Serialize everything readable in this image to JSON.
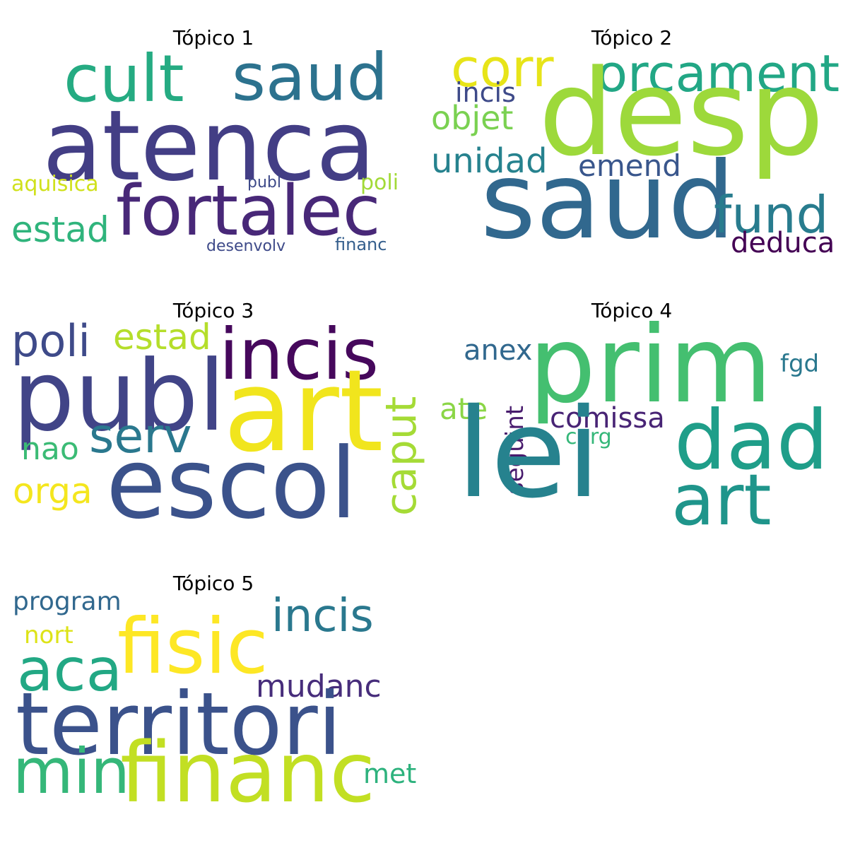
{
  "topics": [
    {
      "title": "Tópico 1",
      "words": [
        {
          "text": "cult",
          "color": "#25ab82"
        },
        {
          "text": "saud",
          "color": "#2c728e"
        },
        {
          "text": "atenca",
          "color": "#433e85"
        },
        {
          "text": "fortalec",
          "color": "#482878"
        },
        {
          "text": "estad",
          "color": "#2fb47c"
        },
        {
          "text": "aquisica",
          "color": "#d0e11c"
        },
        {
          "text": "publ",
          "color": "#3e4a89"
        },
        {
          "text": "poli",
          "color": "#a2da37"
        },
        {
          "text": "desenvolv",
          "color": "#3e4a89"
        },
        {
          "text": "financ",
          "color": "#355f8d"
        }
      ]
    },
    {
      "title": "Tópico 2",
      "words": [
        {
          "text": "corr",
          "color": "#e7e419"
        },
        {
          "text": "orcament",
          "color": "#22a785"
        },
        {
          "text": "desp",
          "color": "#9dd93b"
        },
        {
          "text": "incis",
          "color": "#3e4a89"
        },
        {
          "text": "objet",
          "color": "#7ad151"
        },
        {
          "text": "unidad",
          "color": "#26828e"
        },
        {
          "text": "emend",
          "color": "#39568c"
        },
        {
          "text": "saud",
          "color": "#31688e"
        },
        {
          "text": "fund",
          "color": "#287c8e"
        },
        {
          "text": "deduca",
          "color": "#440154"
        }
      ]
    },
    {
      "title": "Tópico 3",
      "words": [
        {
          "text": "poli",
          "color": "#3e4a89"
        },
        {
          "text": "estad",
          "color": "#b5de2b"
        },
        {
          "text": "incis",
          "color": "#46085c"
        },
        {
          "text": "publ",
          "color": "#414487"
        },
        {
          "text": "art",
          "color": "#f1e51d"
        },
        {
          "text": "serv",
          "color": "#2a788e"
        },
        {
          "text": "nao",
          "color": "#3bbb75"
        },
        {
          "text": "caput",
          "color": "#a5db36"
        },
        {
          "text": "escol",
          "color": "#3b528b"
        },
        {
          "text": "orga",
          "color": "#f4e61e"
        }
      ]
    },
    {
      "title": "Tópico 4",
      "words": [
        {
          "text": "anex",
          "color": "#31688e"
        },
        {
          "text": "prim",
          "color": "#44bf70"
        },
        {
          "text": "fgd",
          "color": "#2a788e"
        },
        {
          "text": "ate",
          "color": "#8bd646"
        },
        {
          "text": "seguint",
          "color": "#481b6d"
        },
        {
          "text": "comissa",
          "color": "#482475"
        },
        {
          "text": "carg",
          "color": "#35b779"
        },
        {
          "text": "dad",
          "color": "#1f9e89"
        },
        {
          "text": "lei",
          "color": "#26828e"
        },
        {
          "text": "art",
          "color": "#1f958b"
        }
      ]
    },
    {
      "title": "Tópico 5",
      "words": [
        {
          "text": "program",
          "color": "#31688e"
        },
        {
          "text": "nort",
          "color": "#dde318"
        },
        {
          "text": "fisic",
          "color": "#fde725"
        },
        {
          "text": "incis",
          "color": "#2a788e"
        },
        {
          "text": "aca",
          "color": "#22a884"
        },
        {
          "text": "mudanc",
          "color": "#472d7b"
        },
        {
          "text": "territori",
          "color": "#3b528b"
        },
        {
          "text": "min",
          "color": "#35b779"
        },
        {
          "text": "financ",
          "color": "#c2df23"
        },
        {
          "text": "met",
          "color": "#2db27d"
        }
      ]
    }
  ]
}
